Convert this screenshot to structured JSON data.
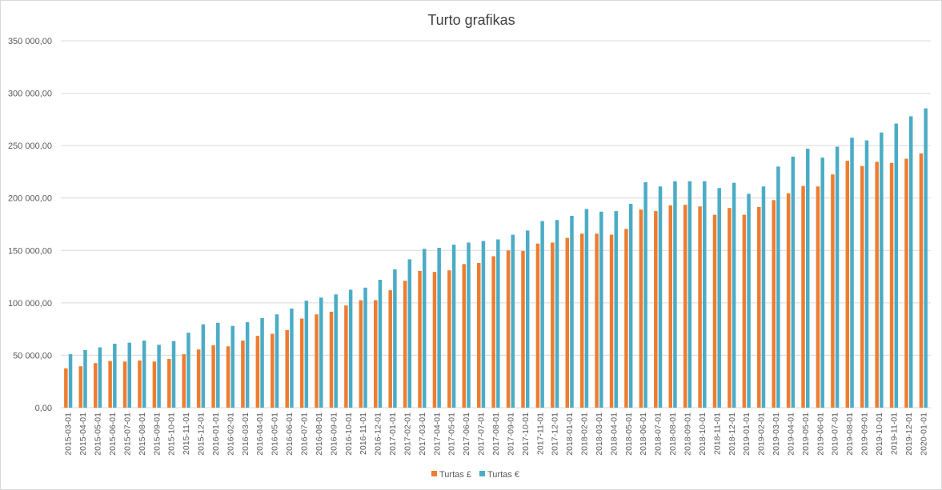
{
  "chart_data": {
    "type": "bar",
    "title": "Turto grafikas",
    "xlabel": "",
    "ylabel": "",
    "ylim": [
      0,
      350000
    ],
    "yticks": [
      {
        "value": 0,
        "label": "0,00"
      },
      {
        "value": 50000,
        "label": "50 000,00"
      },
      {
        "value": 100000,
        "label": "100 000,00"
      },
      {
        "value": 150000,
        "label": "150 000,00"
      },
      {
        "value": 200000,
        "label": "200 000,00"
      },
      {
        "value": 250000,
        "label": "250 000,00"
      },
      {
        "value": 300000,
        "label": "300 000,00"
      },
      {
        "value": 350000,
        "label": "350 000,00"
      }
    ],
    "grid": true,
    "legend_position": "bottom",
    "categories": [
      "2015-03-01",
      "2015-04-01",
      "2015-05-01",
      "2015-06-01",
      "2015-07-01",
      "2015-08-01",
      "2015-09-01",
      "2015-10-01",
      "2015-11-01",
      "2015-12-01",
      "2016-01-01",
      "2016-02-01",
      "2016-03-01",
      "2016-04-01",
      "2016-05-01",
      "2016-06-01",
      "2016-07-01",
      "2016-08-01",
      "2016-09-01",
      "2016-10-01",
      "2016-11-01",
      "2016-12-01",
      "2017-01-01",
      "2017-02-01",
      "2017-03-01",
      "2017-04-01",
      "2017-05-01",
      "2017-06-01",
      "2017-07-01",
      "2017-08-01",
      "2017-09-01",
      "2017-10-01",
      "2017-11-01",
      "2017-12-01",
      "2018-01-01",
      "2018-02-01",
      "2018-03-01",
      "2018-04-01",
      "2018-05-01",
      "2018-06-01",
      "2018-07-01",
      "2018-08-01",
      "2018-09-01",
      "2018-10-01",
      "2018-11-01",
      "2018-12-01",
      "2019-01-01",
      "2019-02-01",
      "2019-03-01",
      "2019-04-01",
      "2019-05-01",
      "2019-06-01",
      "2019-07-01",
      "2019-08-01",
      "2019-09-01",
      "2019-10-01",
      "2019-11-01",
      "2019-12-01",
      "2020-01-01"
    ],
    "series": [
      {
        "name": "Turtas £",
        "color": "#ED7D31",
        "values": [
          37500,
          39500,
          42500,
          44500,
          44000,
          45000,
          44000,
          46500,
          51000,
          55500,
          59500,
          58500,
          64000,
          68500,
          70500,
          74000,
          85000,
          89000,
          91500,
          97500,
          102500,
          102500,
          112000,
          121000,
          130500,
          129500,
          131000,
          137000,
          138000,
          144500,
          150000,
          149500,
          156500,
          157500,
          162000,
          166000,
          166000,
          165000,
          170500,
          189000,
          187500,
          193000,
          193500,
          192000,
          184000,
          190500,
          184000,
          191500,
          198000,
          204500,
          211500,
          211000,
          222500,
          235500,
          230500,
          234500,
          233500,
          237500,
          242500
        ]
      },
      {
        "name": "Turtas €",
        "color": "#4BACC6",
        "values": [
          51000,
          55000,
          57500,
          61000,
          62000,
          64000,
          60000,
          63500,
          71500,
          79500,
          81000,
          78000,
          81500,
          85500,
          89000,
          94500,
          102000,
          105000,
          108000,
          112500,
          114500,
          122000,
          132000,
          141500,
          151500,
          152500,
          155500,
          157500,
          159000,
          160500,
          165000,
          169000,
          178000,
          179000,
          183000,
          189500,
          187000,
          187500,
          194500,
          215000,
          211000,
          216000,
          216000,
          216000,
          209500,
          214500,
          204000,
          211000,
          230000,
          239500,
          247000,
          238500,
          249000,
          257500,
          255000,
          262500,
          271000,
          278000,
          285500
        ]
      }
    ]
  }
}
